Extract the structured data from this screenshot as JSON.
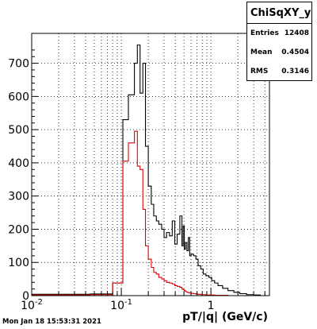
{
  "chart_data": {
    "type": "histogram",
    "title": "",
    "xlabel": "pT/|q| (GeV/c)",
    "ylabel": "",
    "x_scale": "log",
    "xlim": [
      0.01,
      4.5
    ],
    "ylim": [
      0,
      790
    ],
    "grid": true,
    "y_ticks": [
      0,
      100,
      200,
      300,
      400,
      500,
      600,
      700
    ],
    "x_tick_labels": [
      {
        "x": 0.01,
        "base": "10",
        "exp": "-2"
      },
      {
        "x": 0.1,
        "base": "10",
        "exp": "-1"
      },
      {
        "x": 1,
        "base": "1",
        "exp": ""
      }
    ],
    "series": [
      {
        "color": "#000000",
        "edges": [
          0.01,
          0.045,
          0.08,
          0.104,
          0.12,
          0.14,
          0.151,
          0.162,
          0.174,
          0.186,
          0.2,
          0.216,
          0.23,
          0.246,
          0.262,
          0.282,
          0.3,
          0.32,
          0.345,
          0.37,
          0.395,
          0.42,
          0.45,
          0.475,
          0.49,
          0.505,
          0.52,
          0.54,
          0.56,
          0.58,
          0.6,
          0.64,
          0.68,
          0.72,
          0.77,
          0.82,
          0.88,
          0.95,
          1.02,
          1.1,
          1.2,
          1.35,
          1.55,
          1.8,
          2.1,
          2.5,
          3.0,
          3.6
        ],
        "values": [
          4,
          5,
          38,
          530,
          605,
          700,
          755,
          610,
          700,
          450,
          330,
          275,
          240,
          225,
          215,
          200,
          175,
          190,
          180,
          225,
          155,
          185,
          240,
          150,
          210,
          140,
          160,
          135,
          175,
          120,
          125,
          120,
          110,
          90,
          80,
          65,
          60,
          55,
          45,
          38,
          30,
          22,
          15,
          10,
          6,
          3,
          2
        ]
      },
      {
        "color": "#dd0000",
        "edges": [
          0.01,
          0.045,
          0.08,
          0.104,
          0.12,
          0.14,
          0.151,
          0.162,
          0.174,
          0.186,
          0.2,
          0.216,
          0.23,
          0.246,
          0.262,
          0.282,
          0.3,
          0.32,
          0.345,
          0.37,
          0.395,
          0.42,
          0.45,
          0.475,
          0.49,
          0.505,
          0.52,
          0.54,
          0.56,
          0.58,
          0.6,
          0.64,
          0.68,
          0.72,
          0.77,
          0.82,
          0.88,
          0.95,
          1.02,
          1.1,
          1.2,
          1.35,
          1.55,
          1.8,
          2.1,
          2.5,
          3.0,
          3.6
        ],
        "values": [
          2,
          3,
          38,
          405,
          460,
          495,
          390,
          380,
          260,
          150,
          110,
          85,
          70,
          65,
          55,
          50,
          45,
          40,
          38,
          35,
          30,
          28,
          25,
          20,
          18,
          15,
          12,
          10,
          9,
          8,
          7,
          6,
          5,
          4,
          3,
          3,
          2,
          2,
          2,
          1,
          1,
          1,
          0,
          0,
          0,
          0,
          0
        ]
      }
    ]
  },
  "stats": {
    "title": "ChiSqXY_y",
    "rows": [
      {
        "label": "Entries",
        "value": "12408"
      },
      {
        "label": "Mean",
        "value": "0.4504"
      },
      {
        "label": "RMS",
        "value": "0.3146"
      }
    ]
  },
  "timestamp": "Mon Jan 18 15:53:31 2021"
}
